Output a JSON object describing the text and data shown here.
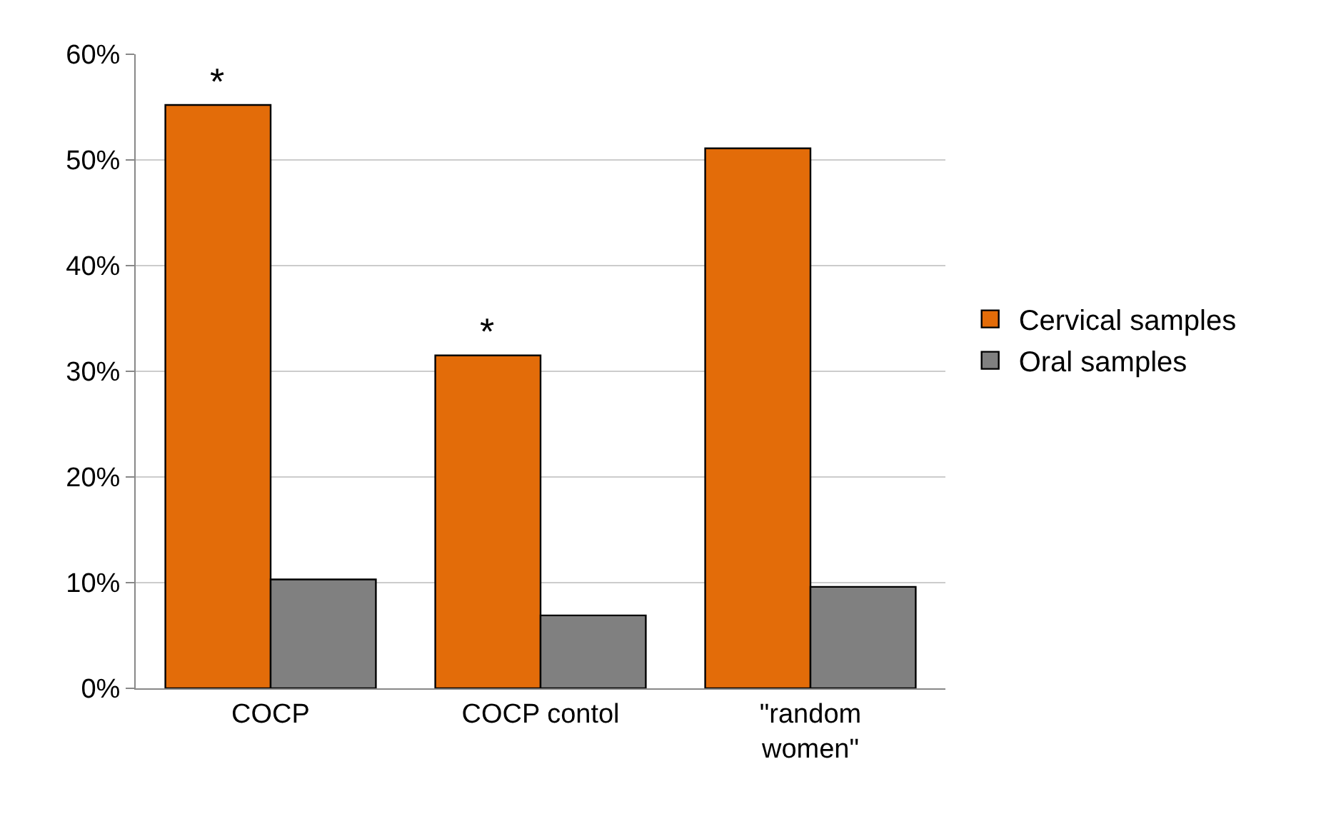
{
  "chart_data": {
    "type": "bar",
    "categories": [
      "COCP",
      "COCP contol",
      "\"random women\""
    ],
    "series": [
      {
        "name": "Cervical samples",
        "color": "#e36c09",
        "values": [
          55.2,
          31.5,
          51.1
        ]
      },
      {
        "name": "Oral samples",
        "color": "#808080",
        "values": [
          10.3,
          6.9,
          9.6
        ]
      }
    ],
    "ylim": [
      0,
      60
    ],
    "yticks": [
      {
        "value": 0,
        "label": "0%"
      },
      {
        "value": 10,
        "label": "10%"
      },
      {
        "value": 20,
        "label": "20%"
      },
      {
        "value": 30,
        "label": "30%"
      },
      {
        "value": 40,
        "label": "40%"
      },
      {
        "value": 50,
        "label": "50%"
      },
      {
        "value": 60,
        "label": "60%"
      }
    ],
    "annotations": [
      {
        "text": "*",
        "x": "COCP",
        "y": 55.2
      },
      {
        "text": "*",
        "x": "COCP contol",
        "y": 31.5
      }
    ],
    "grid": "y",
    "legend": "right"
  }
}
